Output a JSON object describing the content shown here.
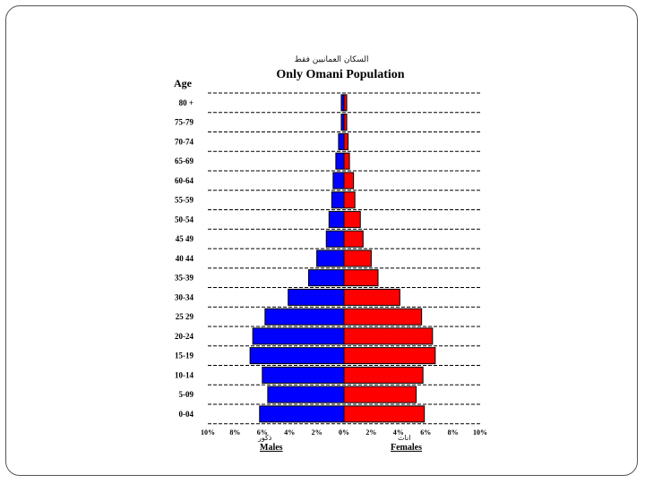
{
  "chart_data": {
    "type": "bar",
    "orientation": "horizontal-pyramid",
    "subtitle": "السكان العمانيين فقط",
    "title": "Only Omani Population",
    "ylabel": "Age",
    "categories": [
      "80 +",
      "75-79",
      "70-74",
      "65-69",
      "60-64",
      "55-59",
      "50-54",
      "45 49",
      "40 44",
      "35-39",
      "30-34",
      "25 29",
      "20-24",
      "15-19",
      "10-14",
      "5-09",
      "0-04"
    ],
    "xticks": [
      "10%",
      "8%",
      "6%",
      "4%",
      "2%",
      "0%",
      "2%",
      "4%",
      "6%",
      "8%",
      "10%"
    ],
    "xlim": [
      -10,
      10
    ],
    "grid": "dashed horizontal",
    "series": [
      {
        "name": "Males",
        "name_ar": "ذكور",
        "color": "#0000ff",
        "values": [
          0.2,
          0.2,
          0.4,
          0.6,
          0.8,
          0.9,
          1.1,
          1.3,
          2.0,
          2.6,
          4.1,
          5.8,
          6.7,
          6.9,
          6.0,
          5.6,
          6.2
        ]
      },
      {
        "name": "Females",
        "name_ar": "اناث",
        "color": "#ff0000",
        "values": [
          0.2,
          0.2,
          0.3,
          0.4,
          0.7,
          0.8,
          1.2,
          1.4,
          2.0,
          2.5,
          4.1,
          5.7,
          6.5,
          6.7,
          5.8,
          5.3,
          5.9
        ]
      }
    ]
  }
}
